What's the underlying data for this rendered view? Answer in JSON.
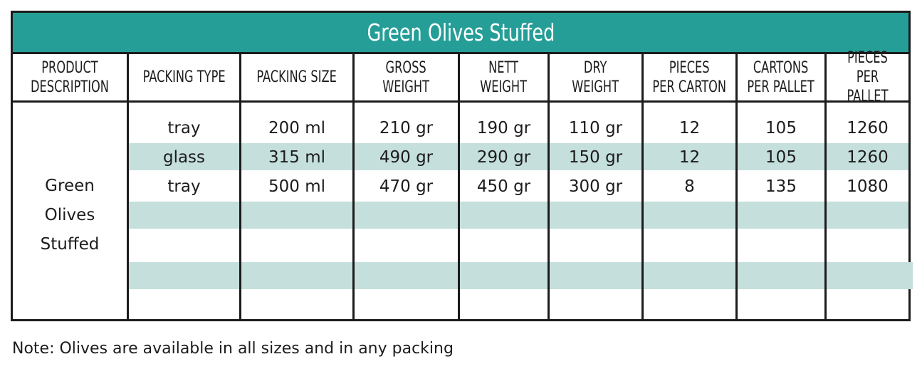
{
  "title": "Green Olives Stuffed",
  "headers": [
    "PRODUCT\nDESCRIPTION",
    "PACKING TYPE",
    "PACKING SIZE",
    "GROSS\nWEIGHT",
    "NETT\nWEIGHT",
    "DRY\nWEIGHT",
    "PIECES\nPER CARTON",
    "CARTONS\nPER PALLET",
    "PIECES\nPER PALLET"
  ],
  "product_description": [
    "Green",
    "Olives",
    "Stuffed"
  ],
  "rows": [
    [
      "tray",
      "200 ml",
      "210 gr",
      "190 gr",
      "110 gr",
      "12",
      "105",
      "1260"
    ],
    [
      "glass",
      "315 ml",
      "490 gr",
      "290 gr",
      "150 gr",
      "12",
      "105",
      "1260"
    ],
    [
      "tray",
      "500 ml",
      "470 gr",
      "450 gr",
      "300 gr",
      "8",
      "135",
      "1080"
    ]
  ],
  "note": "Note: Olives are available in all sizes and in any packing",
  "colors": {
    "title_bg": "#259e97",
    "stripe": "#c5dfdc",
    "border": "#1c1c1c"
  }
}
